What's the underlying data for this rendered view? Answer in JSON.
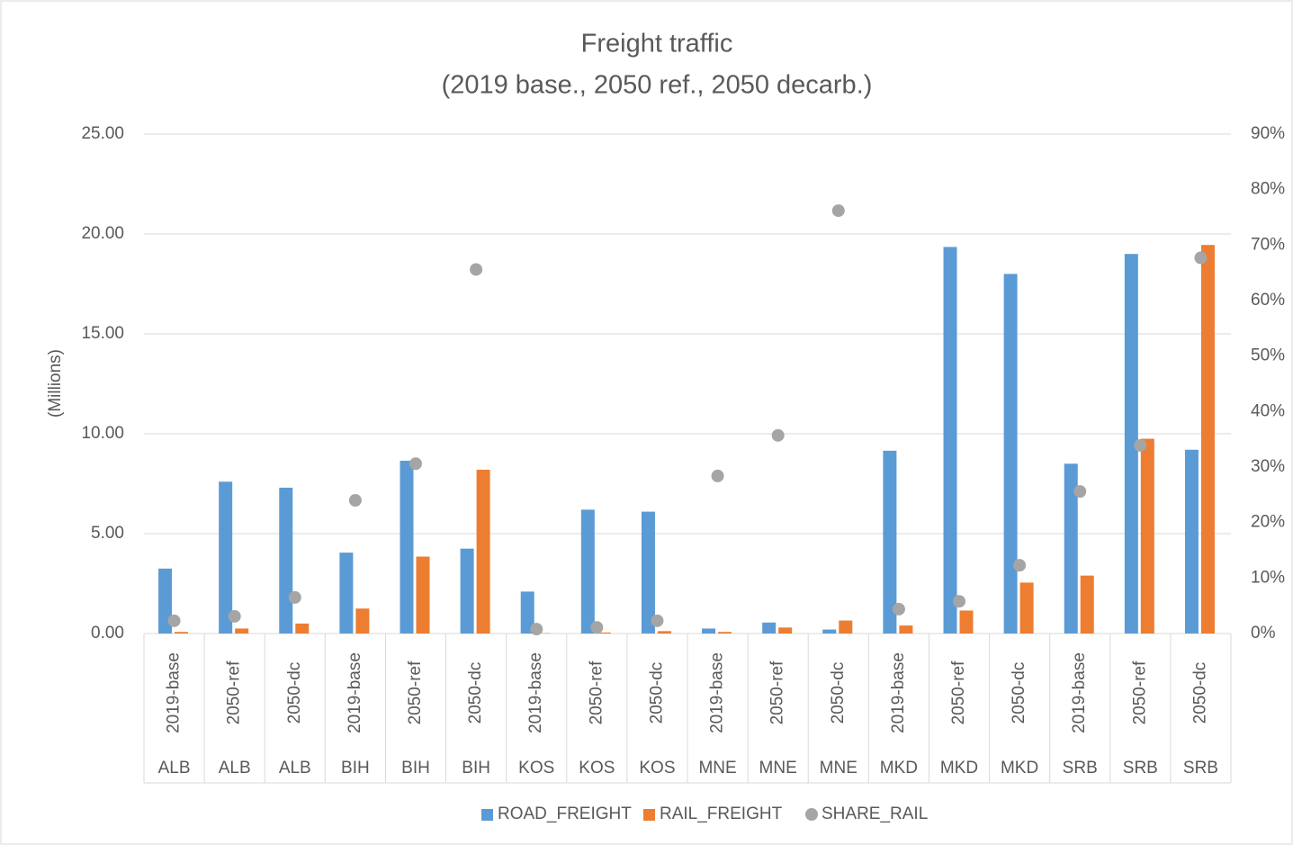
{
  "chart_data": {
    "type": "bar_scatter_combo",
    "title": "Freight traffic",
    "subtitle": "(2019 base., 2050 ref., 2050 decarb.)",
    "y_label": "(Millions)",
    "categories": [
      "2019-base",
      "2050-ref",
      "2050-dc",
      "2019-base",
      "2050-ref",
      "2050-dc",
      "2019-base",
      "2050-ref",
      "2050-dc",
      "2019-base",
      "2050-ref",
      "2050-dc",
      "2019-base",
      "2050-ref",
      "2050-dc",
      "2019-base",
      "2050-ref",
      "2050-dc"
    ],
    "category_groups": [
      "ALB",
      "ALB",
      "ALB",
      "BIH",
      "BIH",
      "BIH",
      "KOS",
      "KOS",
      "KOS",
      "MNE",
      "MNE",
      "MNE",
      "MKD",
      "MKD",
      "MKD",
      "SRB",
      "SRB",
      "SRB"
    ],
    "series": [
      {
        "name": "ROAD_FREIGHT",
        "color": "#5b9bd5",
        "kind": "bar",
        "values": [
          3.25,
          7.6,
          7.3,
          4.05,
          8.65,
          4.25,
          2.1,
          6.2,
          6.1,
          0.25,
          0.55,
          0.2,
          9.15,
          19.35,
          18.0,
          8.5,
          19.0,
          9.2
        ]
      },
      {
        "name": "RAIL_FREIGHT",
        "color": "#ed7d31",
        "kind": "bar",
        "values": [
          0.08,
          0.25,
          0.5,
          1.25,
          3.85,
          8.2,
          0.02,
          0.05,
          0.12,
          0.08,
          0.3,
          0.65,
          0.4,
          1.15,
          2.55,
          2.9,
          9.75,
          19.45
        ]
      },
      {
        "name": "SHARE_RAIL",
        "color": "#a5a5a5",
        "kind": "scatter",
        "axis": "y2",
        "values": [
          2.3,
          3.1,
          6.5,
          24,
          30.6,
          65.6,
          0.8,
          1.1,
          2.3,
          28.4,
          35.7,
          76.2,
          4.4,
          5.8,
          12.3,
          25.6,
          33.9,
          67.7
        ]
      }
    ],
    "ylim": [
      0,
      25
    ],
    "yticks": [
      {
        "value": 0,
        "label": "0.00"
      },
      {
        "value": 5,
        "label": "5.00"
      },
      {
        "value": 10,
        "label": "10.00"
      },
      {
        "value": 15,
        "label": "15.00"
      },
      {
        "value": 20,
        "label": "20.00"
      },
      {
        "value": 25,
        "label": "25.00"
      }
    ],
    "y2lim": [
      0,
      90
    ],
    "y2ticks": [
      {
        "value": 0,
        "label": "0%"
      },
      {
        "value": 10,
        "label": "10%"
      },
      {
        "value": 20,
        "label": "20%"
      },
      {
        "value": 30,
        "label": "30%"
      },
      {
        "value": 40,
        "label": "40%"
      },
      {
        "value": 50,
        "label": "50%"
      },
      {
        "value": 60,
        "label": "60%"
      },
      {
        "value": 70,
        "label": "70%"
      },
      {
        "value": 80,
        "label": "80%"
      },
      {
        "value": 90,
        "label": "90%"
      }
    ],
    "grid": true,
    "legend": "bottom"
  }
}
